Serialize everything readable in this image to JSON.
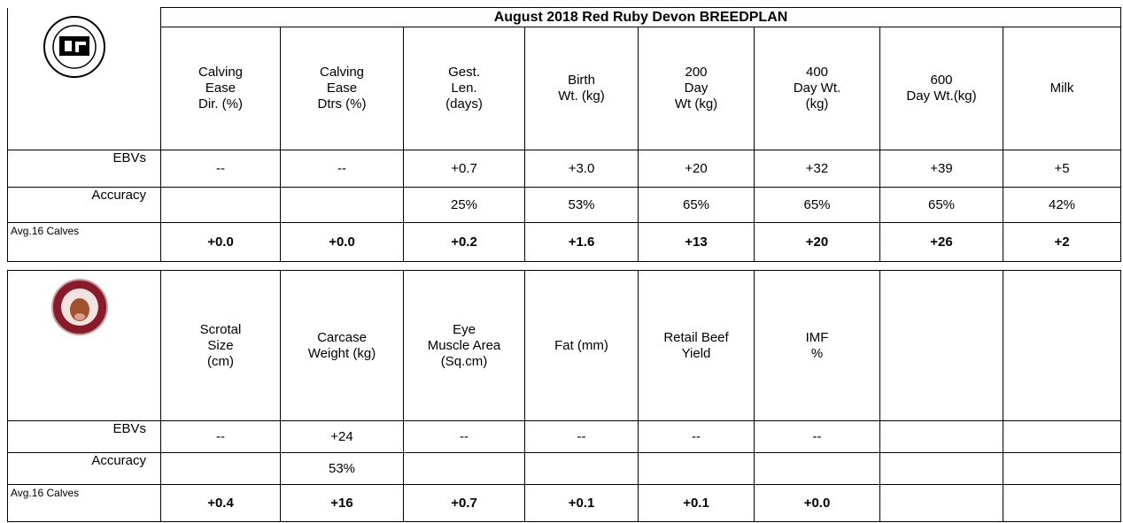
{
  "table1": {
    "title": "August 2018 Red Ruby Devon BREEDPLAN",
    "headers": [
      "Calving\nEase\nDir. (%)",
      "Calving\nEase\nDtrs (%)",
      "Gest.\nLen.\n(days)",
      "Birth\nWt. (kg)",
      "200\nDay\nWt (kg)",
      "400\nDay Wt.\n(kg)",
      "600\nDay Wt.(kg)",
      "Milk"
    ],
    "rows": [
      {
        "label": "EBVs",
        "cells": [
          "--",
          "--",
          "+0.7",
          "+3.0",
          "+20",
          "+32",
          "+39",
          "+5"
        ]
      },
      {
        "label": "Accuracy",
        "cells": [
          null,
          null,
          "25%",
          "53%",
          "65%",
          "65%",
          "65%",
          "42%"
        ]
      },
      {
        "label": "Avg.16 Calves",
        "cells": [
          "+0.0",
          "+0.0",
          "+0.2",
          "+1.6",
          "+13",
          "+20",
          "+26",
          "+2"
        ]
      }
    ]
  },
  "table2": {
    "headers": [
      "Scrotal\nSize\n(cm)",
      "Carcase\nWeight (kg)",
      "Eye\nMuscle Area\n(Sq.cm)",
      "Fat (mm)",
      "Retail Beef\nYield",
      "IMF\n%",
      null,
      null
    ],
    "rows": [
      {
        "label": "EBVs",
        "cells": [
          "--",
          "+24",
          "--",
          "--",
          "--",
          "--",
          null,
          null
        ]
      },
      {
        "label": "Accuracy",
        "cells": [
          null,
          "53%",
          null,
          null,
          null,
          null,
          null,
          null
        ]
      },
      {
        "label": "Avg.16 Calves",
        "cells": [
          "+0.4",
          "+16",
          "+0.7",
          "+0.1",
          "+0.1",
          "+0.0",
          null,
          null
        ]
      }
    ]
  }
}
